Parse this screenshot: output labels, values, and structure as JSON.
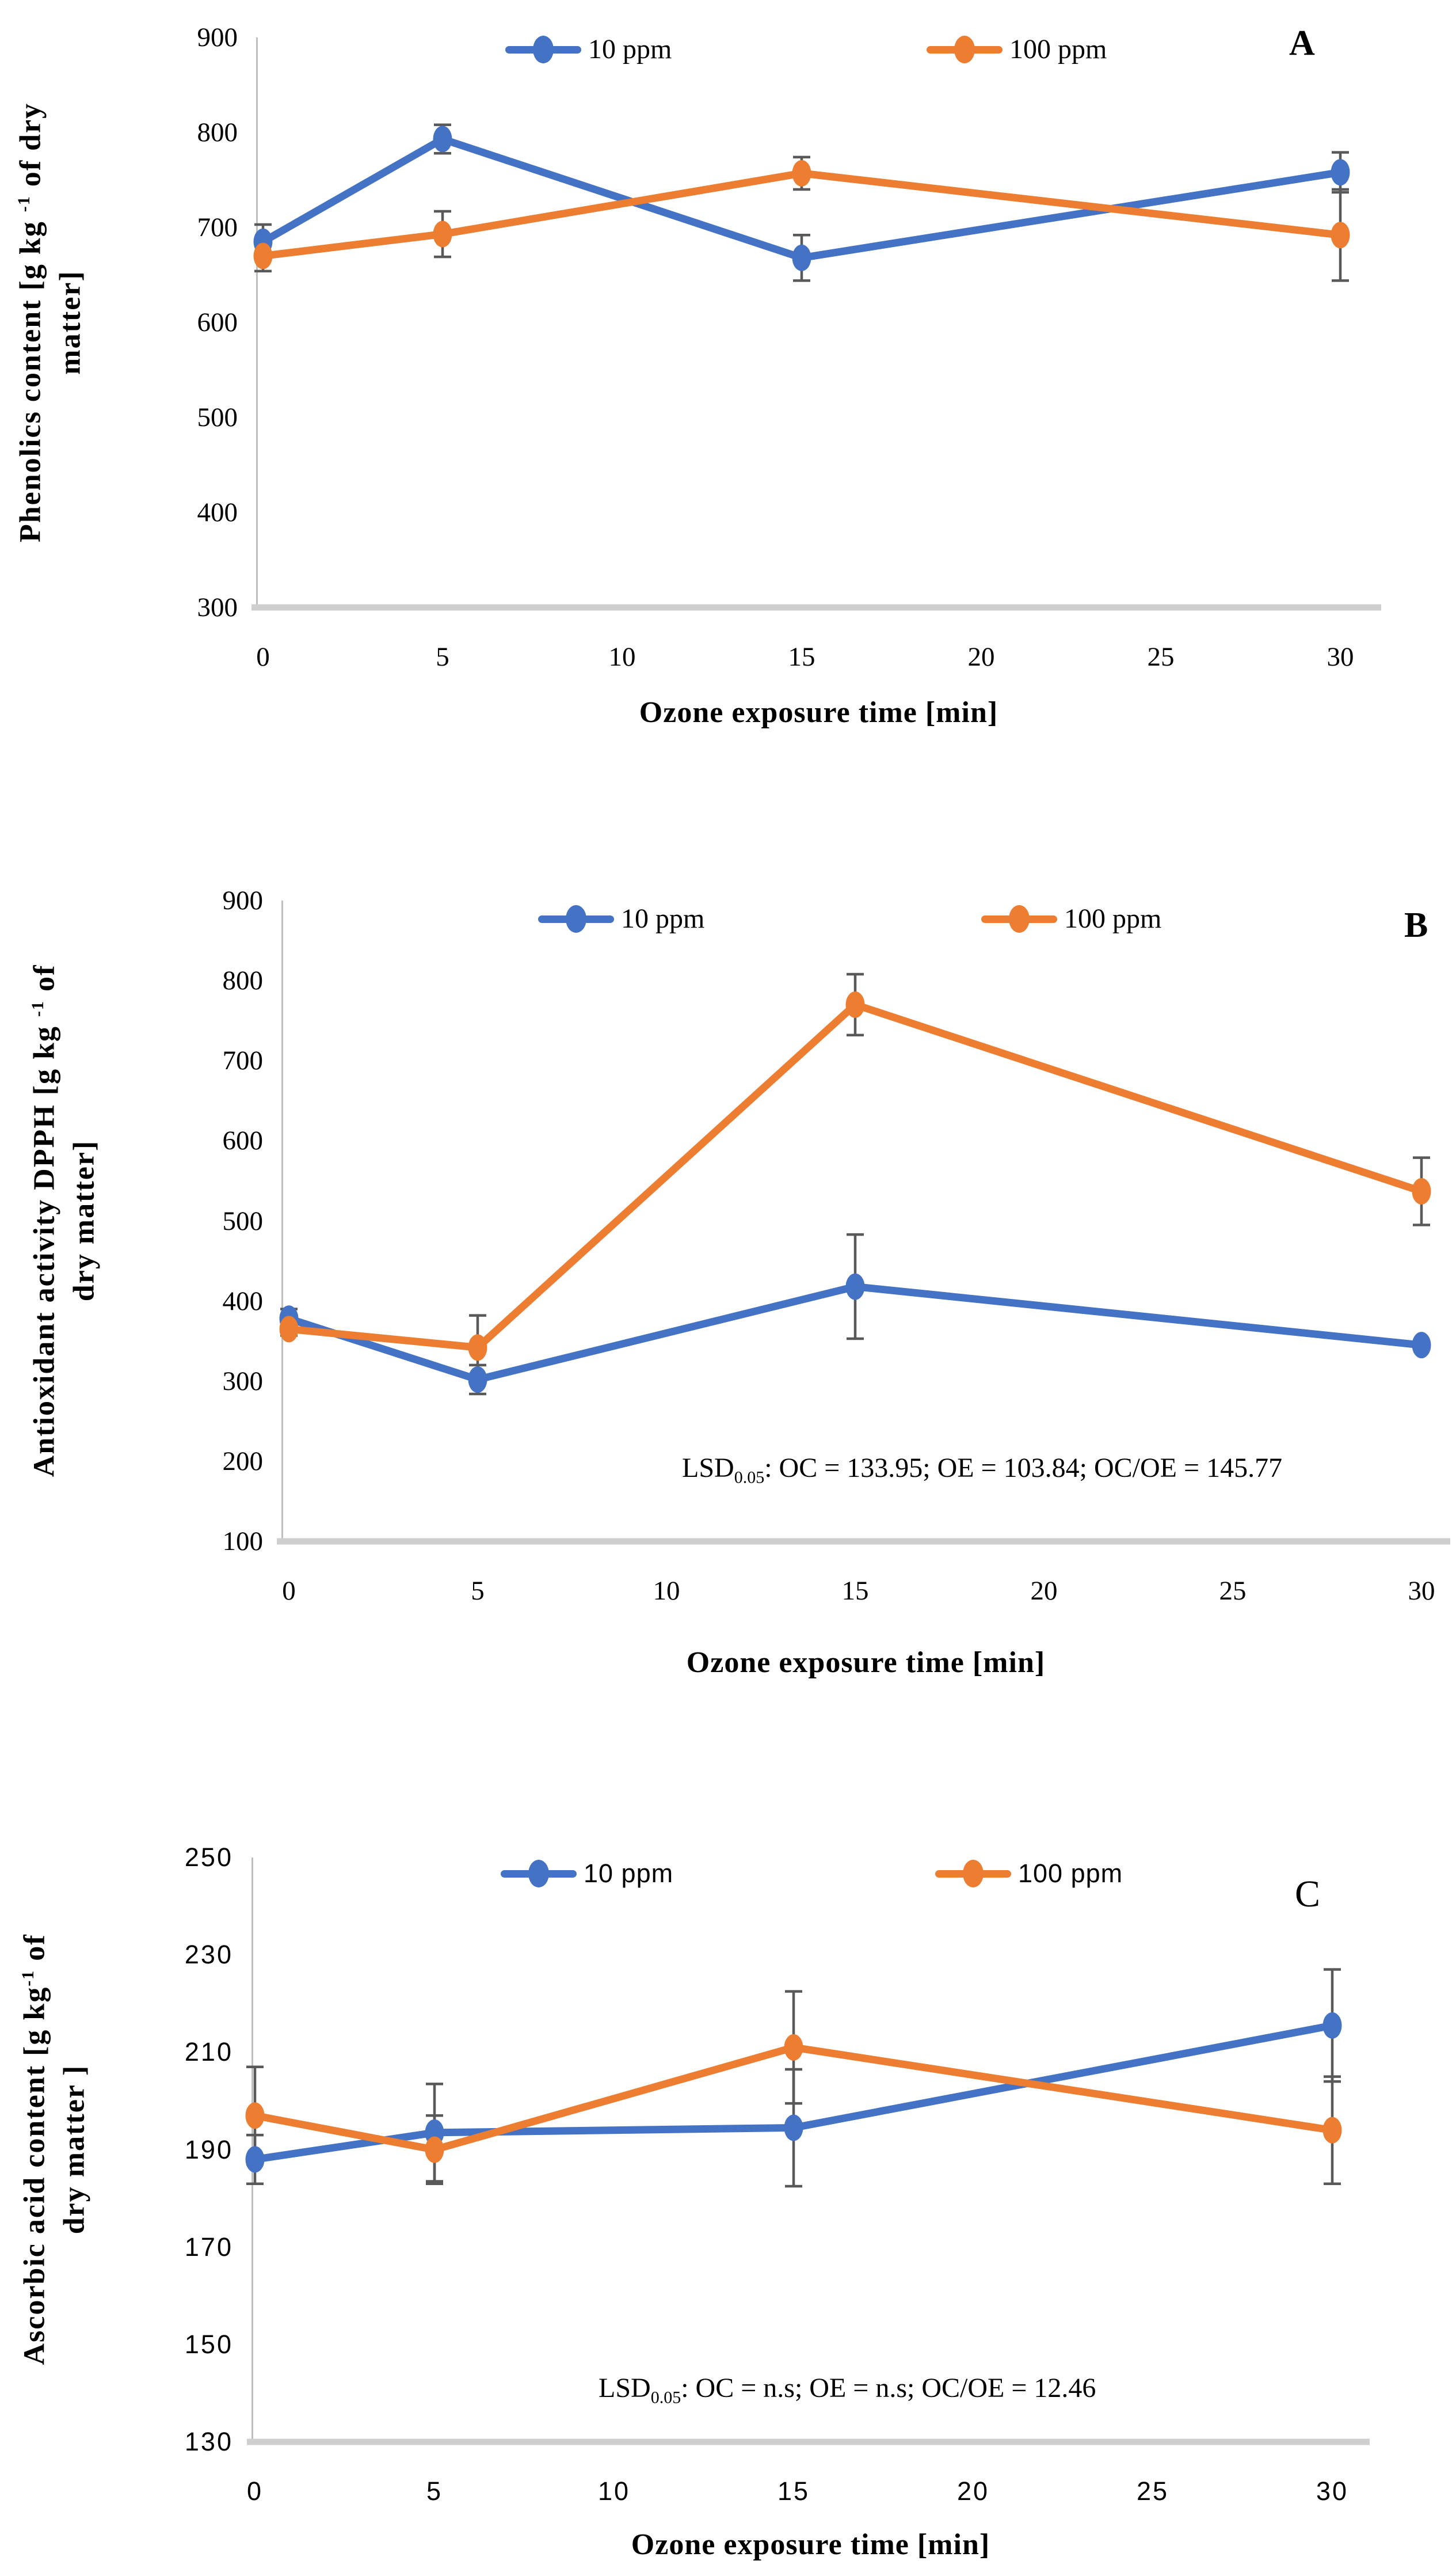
{
  "colors": {
    "series_10ppm": "#4472C4",
    "series_100ppm": "#ED7D31",
    "error_bar": "#595959",
    "axis_line": "#BFBFBF",
    "baseline": "#CFCFCF"
  },
  "chart_data": [
    {
      "type": "line",
      "panel_label": "A",
      "y_axis": {
        "title_pre": "Phenolics content [g kg ",
        "title_sup": "-1",
        "title_post": " of dry",
        "title_line2": "matter]",
        "min": 300,
        "max": 900,
        "ticks": [
          900,
          800,
          700,
          600,
          500,
          400,
          300
        ]
      },
      "x_axis": {
        "title": "Ozone exposure time [min]",
        "ticks": [
          0,
          5,
          10,
          15,
          20,
          25,
          30
        ]
      },
      "legend": [
        {
          "label": "10 ppm"
        },
        {
          "label": "100 ppm"
        }
      ],
      "series": [
        {
          "name": "10 ppm",
          "x": [
            0,
            5,
            15,
            30
          ],
          "y": [
            685,
            793,
            668,
            758
          ],
          "yerr": [
            18,
            15,
            24,
            21
          ]
        },
        {
          "name": "100 ppm",
          "x": [
            0,
            5,
            15,
            30
          ],
          "y": [
            670,
            693,
            757,
            692
          ],
          "yerr": [
            16,
            24,
            17,
            48
          ]
        }
      ],
      "annotation": null
    },
    {
      "type": "line",
      "panel_label": "B",
      "y_axis": {
        "title_pre": "Antioxidant activity DPPH [g kg ",
        "title_sup": "-1",
        "title_post": " of",
        "title_line2": "dry matter]",
        "min": 100,
        "max": 900,
        "ticks": [
          900,
          800,
          700,
          600,
          500,
          400,
          300,
          200,
          100
        ]
      },
      "x_axis": {
        "title": "Ozone exposure time [min]",
        "ticks": [
          0,
          5,
          10,
          15,
          20,
          25,
          30
        ]
      },
      "legend": [
        {
          "label": "10 ppm"
        },
        {
          "label": "100 ppm"
        }
      ],
      "series": [
        {
          "name": "10 ppm",
          "x": [
            0,
            5,
            15,
            30
          ],
          "y": [
            378,
            302,
            418,
            345
          ],
          "yerr": [
            12,
            18,
            65,
            0
          ]
        },
        {
          "name": "100 ppm",
          "x": [
            0,
            5,
            15,
            30
          ],
          "y": [
            365,
            342,
            770,
            537
          ],
          "yerr": [
            8,
            40,
            38,
            42
          ]
        }
      ],
      "annotation": {
        "prefix": "LSD",
        "sub": "0.05",
        "text": ": OC = 133.95; OE = 103.84; OC/OE = 145.77"
      }
    },
    {
      "type": "line",
      "panel_label": "C",
      "y_axis": {
        "title_pre": "Ascorbic acid content [g kg",
        "title_sup": "-1",
        "title_post": " of",
        "title_line2": "dry matter ]",
        "min": 130,
        "max": 250,
        "ticks": [
          250,
          230,
          210,
          190,
          170,
          150,
          130
        ]
      },
      "x_axis": {
        "title": "Ozone exposure time [min]",
        "ticks": [
          0,
          5,
          10,
          15,
          20,
          25,
          30
        ]
      },
      "legend": [
        {
          "label": "10 ppm"
        },
        {
          "label": "100 ppm"
        }
      ],
      "series": [
        {
          "name": "10 ppm",
          "x": [
            0,
            5,
            15,
            30
          ],
          "y": [
            188,
            193.5,
            194.5,
            215.5
          ],
          "yerr": [
            5,
            10,
            12,
            11.5
          ]
        },
        {
          "name": "100 ppm",
          "x": [
            0,
            5,
            15,
            30
          ],
          "y": [
            197,
            190,
            211,
            194
          ],
          "yerr": [
            10,
            7,
            11.5,
            11
          ]
        }
      ],
      "annotation": {
        "prefix": "LSD",
        "sub": "0.05",
        "text": ": OC = n.s;  OE = n.s;  OC/OE = 12.46"
      }
    }
  ]
}
